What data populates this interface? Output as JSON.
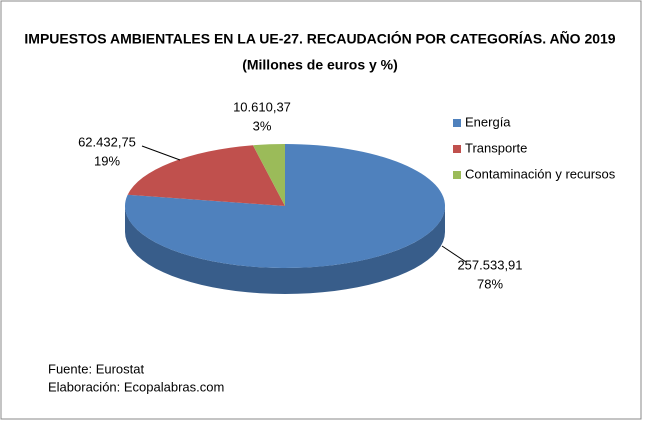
{
  "chart_data": {
    "type": "pie3d",
    "title": "IMPUESTOS AMBIENTALES EN LA UE-27. RECAUDACIÓN POR CATEGORÍAS. AÑO 2019",
    "subtitle": "(Millones de euros y %)",
    "categories": [
      "Energía",
      "Transporte",
      "Contaminación y recursos"
    ],
    "values": [
      257533.91,
      62432.75,
      10610.37
    ],
    "value_labels": [
      "257.533,91",
      "62.432,75",
      "10.610,37"
    ],
    "percentages": [
      78,
      19,
      3
    ],
    "percentage_labels": [
      "78%",
      "19%",
      "3%"
    ],
    "colors": [
      "#4f81bd",
      "#c0504d",
      "#9bbb59"
    ],
    "side_colors": [
      "#385d8a",
      "#8c3836",
      "#71893f"
    ],
    "legend": "right",
    "source": "Fuente: Eurostat",
    "credit": "Elaboración: Ecopalabras.com"
  }
}
